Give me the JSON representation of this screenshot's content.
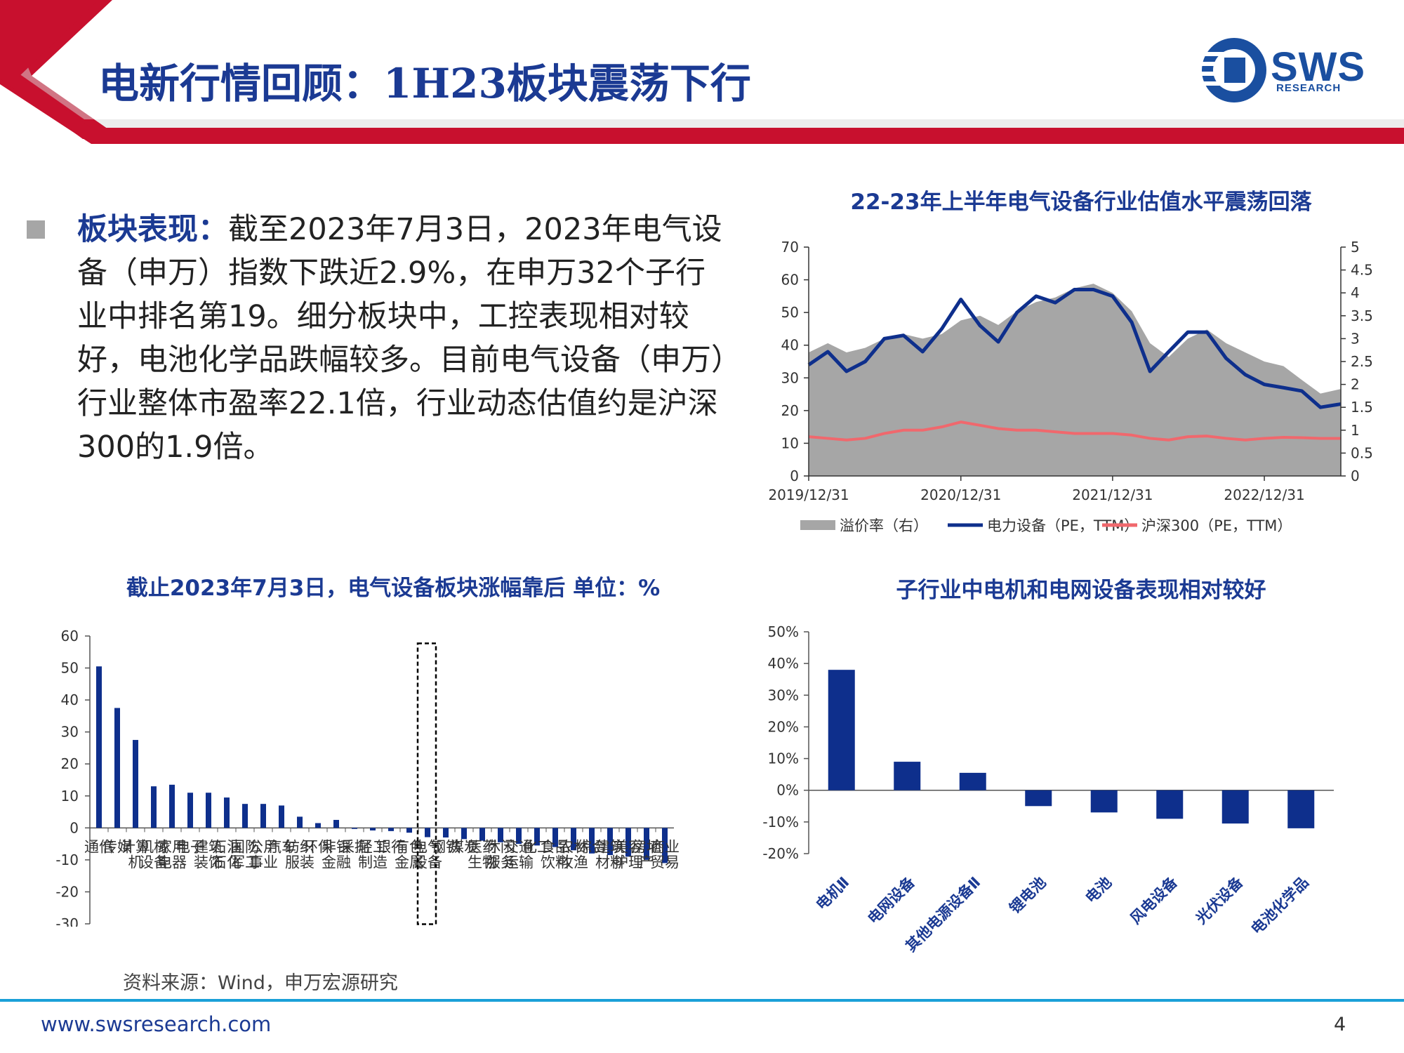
{
  "header": {
    "title": "电新行情回顾：1H23板块震荡下行"
  },
  "logo": {
    "name": "SWS",
    "sub": "RESEARCH"
  },
  "text_block": {
    "heading": "板块表现：",
    "body": "截至2023年7月3日，2023年电气设备（申万）指数下跌近2.9%，在申万32个子行业中排名第19。细分板块中，工控表现相对较好，电池化学品跌幅较多。目前电气设备（申万）行业整体市盈率22.1倍，行业动态估值约是沪深300的1.9倍。"
  },
  "colors": {
    "navy": "#1b3a93",
    "bar": "#0e2f8c",
    "red": "#d40f1e",
    "gray": "#a6a6a6",
    "pink": "#f0686d"
  },
  "chart_data": [
    {
      "type": "line",
      "title": "22-23年上半年电气设备行业估值水平震荡回落",
      "x_ticks": [
        "2019/12/31",
        "2020/12/31",
        "2021/12/31",
        "2022/12/31"
      ],
      "x_range": [
        "2019-12-31",
        "2023-07-03"
      ],
      "y_left": {
        "range": [
          0,
          70
        ],
        "ticks": [
          "0",
          "10",
          "20",
          "30",
          "40",
          "50",
          "60",
          "70"
        ]
      },
      "y_right": {
        "range": [
          0,
          5
        ],
        "ticks": [
          "0",
          "0.5",
          "1",
          "1.5",
          "2",
          "2.5",
          "3",
          "3.5",
          "4",
          "4.5",
          "5"
        ]
      },
      "legend_position": "bottom",
      "series": [
        {
          "name": "溢价率（右）",
          "kind": "area",
          "axis": "right",
          "color": "#a6a6a6",
          "x": [
            "2019-12-31",
            "2020-02-15",
            "2020-03-31",
            "2020-05-15",
            "2020-06-30",
            "2020-08-15",
            "2020-09-30",
            "2020-11-15",
            "2020-12-31",
            "2021-02-15",
            "2021-03-31",
            "2021-05-15",
            "2021-06-30",
            "2021-08-15",
            "2021-09-30",
            "2021-11-15",
            "2021-12-31",
            "2022-02-15",
            "2022-03-31",
            "2022-05-15",
            "2022-06-30",
            "2022-08-15",
            "2022-09-30",
            "2022-11-15",
            "2022-12-31",
            "2023-02-15",
            "2023-03-31",
            "2023-05-15",
            "2023-07-03"
          ],
          "values": [
            2.7,
            2.9,
            2.7,
            2.8,
            3.0,
            3.1,
            3.0,
            3.1,
            3.4,
            3.5,
            3.3,
            3.6,
            3.8,
            3.9,
            4.1,
            4.2,
            4.0,
            3.6,
            2.9,
            2.6,
            3.0,
            3.2,
            2.9,
            2.7,
            2.5,
            2.4,
            2.1,
            1.8,
            1.9
          ]
        },
        {
          "name": "电力设备（PE，TTM）",
          "kind": "line",
          "axis": "left",
          "color": "#0e2f8c",
          "x": [
            "2019-12-31",
            "2020-02-15",
            "2020-03-31",
            "2020-05-15",
            "2020-06-30",
            "2020-08-15",
            "2020-09-30",
            "2020-11-15",
            "2020-12-31",
            "2021-02-15",
            "2021-03-31",
            "2021-05-15",
            "2021-06-30",
            "2021-08-15",
            "2021-09-30",
            "2021-11-15",
            "2021-12-31",
            "2022-02-15",
            "2022-03-31",
            "2022-05-15",
            "2022-06-30",
            "2022-08-15",
            "2022-09-30",
            "2022-11-15",
            "2022-12-31",
            "2023-02-15",
            "2023-03-31",
            "2023-05-15",
            "2023-07-03"
          ],
          "values": [
            34,
            38,
            32,
            35,
            42,
            43,
            38,
            45,
            54,
            46,
            41,
            50,
            55,
            53,
            57,
            57,
            55,
            47,
            32,
            38,
            44,
            44,
            36,
            31,
            28,
            27,
            26,
            21,
            22
          ]
        },
        {
          "name": "沪深300（PE，TTM）",
          "kind": "line",
          "axis": "left",
          "color": "#f0686d",
          "x": [
            "2019-12-31",
            "2020-02-15",
            "2020-03-31",
            "2020-05-15",
            "2020-06-30",
            "2020-08-15",
            "2020-09-30",
            "2020-11-15",
            "2020-12-31",
            "2021-02-15",
            "2021-03-31",
            "2021-05-15",
            "2021-06-30",
            "2021-08-15",
            "2021-09-30",
            "2021-11-15",
            "2021-12-31",
            "2022-02-15",
            "2022-03-31",
            "2022-05-15",
            "2022-06-30",
            "2022-08-15",
            "2022-09-30",
            "2022-11-15",
            "2022-12-31",
            "2023-02-15",
            "2023-03-31",
            "2023-05-15",
            "2023-07-03"
          ],
          "values": [
            12,
            11.5,
            11,
            11.5,
            13,
            14,
            14,
            15,
            16.5,
            15.5,
            14.5,
            14,
            14,
            13.5,
            13,
            13,
            13,
            12.5,
            11.5,
            11,
            12,
            12.2,
            11.5,
            11,
            11.5,
            11.8,
            11.7,
            11.5,
            11.5
          ]
        }
      ]
    },
    {
      "type": "bar",
      "title": "截止2023年7月3日，电气设备板块涨幅靠后  单位：%",
      "ylim": [
        -30,
        60
      ],
      "y_ticks": [
        "-30",
        "-20",
        "-10",
        "0",
        "10",
        "20",
        "30",
        "40",
        "50",
        "60"
      ],
      "categories": [
        "通信",
        "传媒",
        "计算机",
        "机械设备",
        "家用电器",
        "电子",
        "建筑装饰",
        "石油石化",
        "国防军工",
        "公用事业",
        "汽车",
        "纺织服装",
        "环保",
        "非银金融",
        "采掘",
        "轻工制造",
        "银行",
        "有色金属",
        "电气设备",
        "钢铁",
        "煤炭",
        "医药生物",
        "休闲服务",
        "交通运输",
        "化工",
        "食品饮料",
        "农林牧渔",
        "综合",
        "建筑材料",
        "美容护理",
        "房地产",
        "商业贸易"
      ],
      "values": [
        50.5,
        37.5,
        27.5,
        13,
        13.5,
        11,
        11,
        9.5,
        7.5,
        7.5,
        7,
        3.5,
        1.5,
        2.5,
        -0.2,
        -0.8,
        -1,
        -1.5,
        -2.9,
        -3,
        -3.5,
        -4,
        -4.5,
        -5,
        -5.5,
        -6,
        -7,
        -8,
        -8.5,
        -9,
        -10,
        -11
      ],
      "highlight": "电气设备"
    },
    {
      "type": "bar",
      "title": "子行业中电机和电网设备表现相对较好",
      "ylim": [
        -0.2,
        0.5
      ],
      "y_ticks": [
        "-20%",
        "-10%",
        "0%",
        "10%",
        "20%",
        "30%",
        "40%",
        "50%"
      ],
      "categories": [
        "电机Ⅱ",
        "电网设备",
        "其他电源设备Ⅱ",
        "锂电池",
        "电池",
        "风电设备",
        "光伏设备",
        "电池化学品"
      ],
      "values": [
        0.38,
        0.09,
        0.055,
        -0.05,
        -0.07,
        -0.09,
        -0.105,
        -0.12
      ]
    }
  ],
  "footer": {
    "source": "资料来源：Wind，申万宏源研究",
    "url": "www.swsresearch.com",
    "page": "4"
  }
}
